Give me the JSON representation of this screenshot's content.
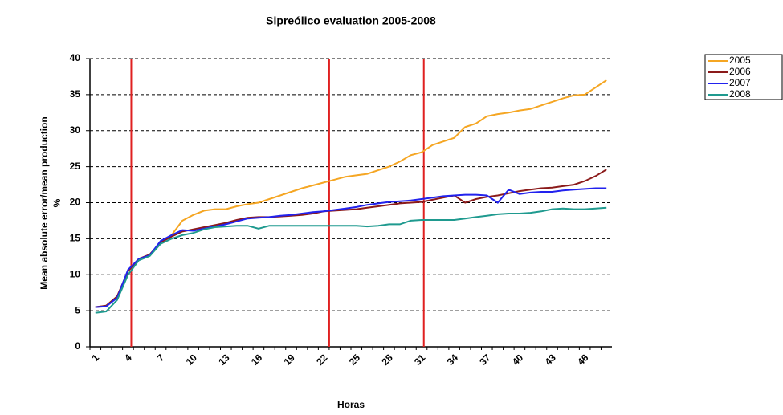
{
  "chart_data": {
    "type": "line",
    "title": "Sipreólico evaluation 2005-2008",
    "ylabel": [
      "Mean absolute error/mean production",
      "%"
    ],
    "xlabel": "Horas",
    "categories": [
      "1",
      null,
      null,
      "4",
      null,
      null,
      "7",
      null,
      null,
      "10",
      null,
      null,
      "13",
      null,
      null,
      "16",
      null,
      null,
      "19",
      null,
      null,
      "22",
      null,
      null,
      "25",
      null,
      null,
      "28",
      null,
      null,
      "31",
      null,
      null,
      "34",
      null,
      null,
      "37",
      null,
      null,
      "40",
      null,
      null,
      "43",
      null,
      null,
      "46",
      null,
      null
    ],
    "series": [
      {
        "name": "2005",
        "color": "#f5a623",
        "values": [
          5.5,
          5.7,
          7,
          10.5,
          12.2,
          12.8,
          14.5,
          15.5,
          17.5,
          18.3,
          18.9,
          19.1,
          19.1,
          19.5,
          19.8,
          20,
          20.5,
          21,
          21.5,
          22,
          22.4,
          22.8,
          23.2,
          23.6,
          23.8,
          24,
          24.5,
          25,
          25.7,
          26.6,
          27,
          28,
          28.5,
          29,
          30.5,
          31,
          32,
          32.3,
          32.5,
          32.8,
          33,
          33.5,
          34,
          34.5,
          34.9,
          35,
          36,
          37
        ]
      },
      {
        "name": "2006",
        "color": "#8b1a1a",
        "values": [
          5.5,
          5.7,
          7,
          10.5,
          12.2,
          12.8,
          14.5,
          15.3,
          16,
          16.3,
          16.6,
          16.9,
          17.2,
          17.6,
          17.9,
          18,
          18,
          18.1,
          18.2,
          18.3,
          18.5,
          18.8,
          18.9,
          19,
          19.1,
          19.3,
          19.5,
          19.7,
          19.9,
          20,
          20.1,
          20.4,
          20.7,
          21,
          20,
          20.5,
          20.8,
          21,
          21.3,
          21.6,
          21.8,
          22,
          22.1,
          22.3,
          22.5,
          23,
          23.7,
          24.6
        ]
      },
      {
        "name": "2007",
        "color": "#2222ee",
        "values": [
          5.5,
          5.6,
          6.8,
          10.7,
          12.2,
          12.7,
          14.7,
          15.5,
          16.2,
          16.1,
          16.4,
          16.7,
          17,
          17.4,
          17.8,
          17.9,
          18,
          18.2,
          18.3,
          18.5,
          18.7,
          18.8,
          19,
          19.2,
          19.4,
          19.7,
          19.9,
          20.1,
          20.2,
          20.3,
          20.5,
          20.7,
          20.9,
          21,
          21.1,
          21.1,
          21,
          20,
          21.8,
          21.2,
          21.4,
          21.5,
          21.5,
          21.7,
          21.8,
          21.9,
          22,
          22
        ]
      },
      {
        "name": "2008",
        "color": "#1f9a8f",
        "values": [
          4.7,
          4.9,
          6.5,
          10,
          12,
          12.6,
          14.3,
          15,
          15.5,
          15.8,
          16.3,
          16.6,
          16.7,
          16.8,
          16.8,
          16.4,
          16.8,
          16.8,
          16.8,
          16.8,
          16.8,
          16.8,
          16.8,
          16.8,
          16.8,
          16.7,
          16.8,
          17,
          17,
          17.5,
          17.6,
          17.6,
          17.6,
          17.6,
          17.8,
          18,
          18.2,
          18.4,
          18.5,
          18.5,
          18.6,
          18.8,
          19.1,
          19.2,
          19.1,
          19.1,
          19.2,
          19.3
        ]
      }
    ],
    "vlines": [
      4.3,
      22.5,
      31.2
    ],
    "vline_color": "#e02020",
    "ylim": [
      0,
      40
    ],
    "yticks": [
      0,
      5,
      10,
      15,
      20,
      25,
      30,
      35,
      40
    ],
    "grid": true,
    "legend": "right"
  }
}
